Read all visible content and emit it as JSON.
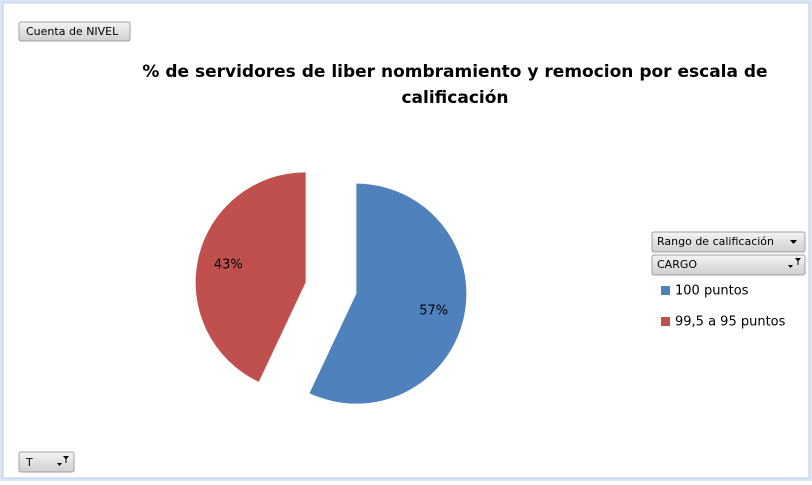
{
  "chart_data": {
    "type": "pie",
    "title": "% de servidores de liber nombramiento y remocion por escala de calificación",
    "value_field": "Cuenta de NIVEL",
    "legend_fields": [
      "Rango de calificación",
      "CARGO"
    ],
    "filter_field": "T",
    "categories": [
      "100 puntos",
      "99,5 a 95 puntos"
    ],
    "values": [
      57,
      43
    ],
    "value_labels": [
      "57%",
      "43%"
    ],
    "colors": [
      "#4f81bd",
      "#c0504d"
    ],
    "exploded": true,
    "legend": "right"
  }
}
